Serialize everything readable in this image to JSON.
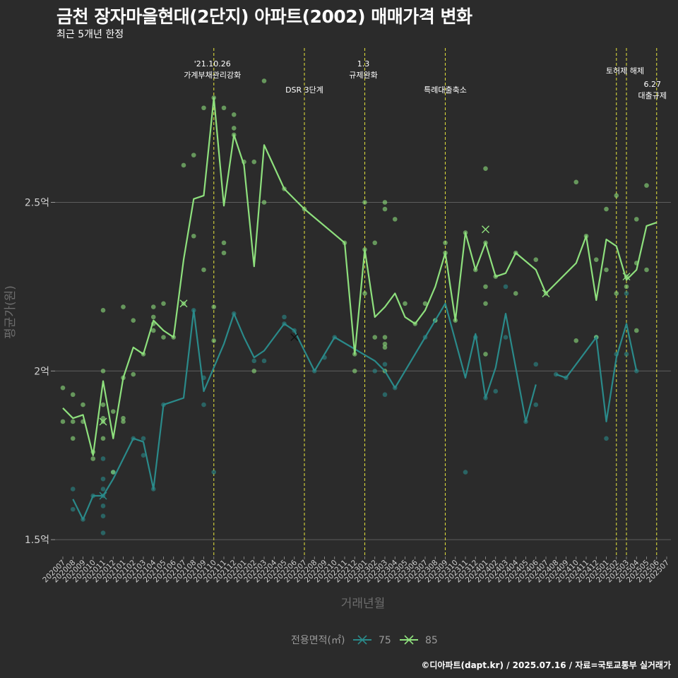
{
  "chart_data": {
    "type": "line",
    "title": "금천 장자마을현대(2단지) 아파트(2002) 매매가격 변화",
    "subtitle": "최근 5개년 한정",
    "xlabel": "거래년월",
    "ylabel": "평균가(원)",
    "caption": "©디아파트(dapt.kr) / 2025.07.16 / 자료=국토교통부 실거래가",
    "legend_title": "전용면적(㎡)",
    "legend_position": "bottom",
    "grid": true,
    "ylim": [
      1.45,
      2.97
    ],
    "yticks": [
      {
        "value": 1.5,
        "label": "1.5억"
      },
      {
        "value": 2.0,
        "label": "2억"
      },
      {
        "value": 2.5,
        "label": "2.5억"
      }
    ],
    "categories": [
      "202007",
      "202008",
      "202009",
      "202010",
      "202011",
      "202012",
      "202101",
      "202102",
      "202103",
      "202104",
      "202105",
      "202106",
      "202107",
      "202108",
      "202109",
      "202110",
      "202111",
      "202112",
      "202201",
      "202202",
      "202203",
      "202204",
      "202205",
      "202206",
      "202207",
      "202208",
      "202209",
      "202210",
      "202211",
      "202212",
      "202301",
      "202302",
      "202303",
      "202304",
      "202305",
      "202306",
      "202307",
      "202308",
      "202309",
      "202310",
      "202311",
      "202312",
      "202401",
      "202402",
      "202403",
      "202404",
      "202405",
      "202406",
      "202407",
      "202408",
      "202409",
      "202410",
      "202411",
      "202412",
      "202501",
      "202502",
      "202503",
      "202504",
      "202505",
      "202506",
      "202507"
    ],
    "series": [
      {
        "name": "75",
        "color": "#2a8a8a",
        "line": [
          [
            1,
            1.62
          ],
          [
            2,
            1.56
          ],
          [
            3,
            1.63
          ],
          [
            4,
            1.63
          ],
          [
            5,
            1.68
          ],
          [
            7,
            1.8
          ],
          [
            8,
            1.79
          ],
          [
            9,
            1.65
          ],
          [
            10,
            1.9
          ],
          [
            12,
            1.92
          ],
          [
            13,
            2.18
          ],
          [
            14,
            1.94
          ],
          [
            16,
            2.08
          ],
          [
            17,
            2.17
          ],
          [
            18,
            2.1
          ],
          [
            19,
            2.04
          ],
          [
            20,
            2.06
          ],
          [
            22,
            2.14
          ],
          [
            23,
            2.12
          ],
          [
            25,
            2.0
          ],
          [
            27,
            2.1
          ],
          [
            31,
            2.03
          ],
          [
            32,
            2.0
          ],
          [
            33,
            1.95
          ],
          [
            36,
            2.1
          ],
          [
            38,
            2.2
          ],
          [
            40,
            1.98
          ],
          [
            41,
            2.11
          ],
          [
            42,
            1.92
          ],
          [
            43,
            2.01
          ],
          [
            44,
            2.17
          ],
          [
            46,
            1.85
          ],
          [
            47,
            1.96
          ],
          [
            null,
            null
          ],
          [
            49,
            1.99
          ],
          [
            50,
            1.98
          ],
          [
            53,
            2.1
          ],
          [
            54,
            1.85
          ],
          [
            55,
            2.04
          ],
          [
            56,
            2.14
          ],
          [
            57,
            2.0
          ]
        ],
        "points": [
          [
            1,
            1.59
          ],
          [
            1,
            1.65
          ],
          [
            2,
            1.56
          ],
          [
            3,
            1.63
          ],
          [
            4,
            1.68
          ],
          [
            4,
            1.65
          ],
          [
            4,
            1.57
          ],
          [
            4,
            1.52
          ],
          [
            4,
            1.63
          ],
          [
            4,
            1.6
          ],
          [
            4,
            1.74
          ],
          [
            5,
            1.7
          ],
          [
            7,
            1.8
          ],
          [
            8,
            1.75
          ],
          [
            8,
            1.8
          ],
          [
            9,
            1.65
          ],
          [
            10,
            1.9
          ],
          [
            13,
            2.18
          ],
          [
            14,
            1.9
          ],
          [
            14,
            1.98
          ],
          [
            15,
            1.7
          ],
          [
            17,
            2.17
          ],
          [
            19,
            2.03
          ],
          [
            20,
            2.03
          ],
          [
            22,
            2.16
          ],
          [
            22,
            2.14
          ],
          [
            23,
            2.12
          ],
          [
            25,
            2.0
          ],
          [
            26,
            2.04
          ],
          [
            27,
            2.1
          ],
          [
            31,
            2.0
          ],
          [
            32,
            1.93
          ],
          [
            32,
            2.02
          ],
          [
            33,
            1.95
          ],
          [
            36,
            2.1
          ],
          [
            37,
            2.15
          ],
          [
            40,
            1.7
          ],
          [
            41,
            2.1
          ],
          [
            42,
            1.92
          ],
          [
            43,
            1.94
          ],
          [
            44,
            2.25
          ],
          [
            44,
            2.1
          ],
          [
            46,
            1.85
          ],
          [
            47,
            1.9
          ],
          [
            47,
            2.02
          ],
          [
            49,
            1.99
          ],
          [
            50,
            1.98
          ],
          [
            53,
            2.1
          ],
          [
            54,
            1.8
          ],
          [
            55,
            2.05
          ],
          [
            56,
            2.23
          ],
          [
            56,
            2.05
          ],
          [
            57,
            2.0
          ]
        ],
        "crosses": [
          [
            4,
            1.63
          ],
          [
            23,
            2.1
          ]
        ]
      },
      {
        "name": "85",
        "color": "#8ee07d",
        "line": [
          [
            0,
            1.89
          ],
          [
            1,
            1.86
          ],
          [
            2,
            1.87
          ],
          [
            3,
            1.75
          ],
          [
            4,
            1.97
          ],
          [
            5,
            1.8
          ],
          [
            6,
            1.98
          ],
          [
            7,
            2.07
          ],
          [
            8,
            2.05
          ],
          [
            9,
            2.15
          ],
          [
            10,
            2.12
          ],
          [
            11,
            2.1
          ],
          [
            12,
            2.33
          ],
          [
            13,
            2.51
          ],
          [
            14,
            2.52
          ],
          [
            15,
            2.81
          ],
          [
            16,
            2.49
          ],
          [
            17,
            2.7
          ],
          [
            18,
            2.61
          ],
          [
            19,
            2.31
          ],
          [
            20,
            2.67
          ],
          [
            22,
            2.54
          ],
          [
            24,
            2.48
          ],
          [
            28,
            2.38
          ],
          [
            29,
            2.05
          ],
          [
            30,
            2.36
          ],
          [
            31,
            2.16
          ],
          [
            32,
            2.19
          ],
          [
            33,
            2.23
          ],
          [
            34,
            2.16
          ],
          [
            35,
            2.14
          ],
          [
            36,
            2.18
          ],
          [
            37,
            2.25
          ],
          [
            38,
            2.35
          ],
          [
            39,
            2.15
          ],
          [
            40,
            2.41
          ],
          [
            41,
            2.3
          ],
          [
            42,
            2.38
          ],
          [
            43,
            2.28
          ],
          [
            44,
            2.29
          ],
          [
            45,
            2.35
          ],
          [
            47,
            2.3
          ],
          [
            48,
            2.23
          ],
          [
            51,
            2.32
          ],
          [
            52,
            2.4
          ],
          [
            53,
            2.21
          ],
          [
            54,
            2.39
          ],
          [
            55,
            2.37
          ],
          [
            56,
            2.27
          ],
          [
            57,
            2.3
          ],
          [
            58,
            2.43
          ],
          [
            59,
            2.44
          ]
        ],
        "points": [
          [
            0,
            1.95
          ],
          [
            0,
            1.85
          ],
          [
            1,
            1.93
          ],
          [
            1,
            1.85
          ],
          [
            1,
            1.8
          ],
          [
            2,
            1.9
          ],
          [
            2,
            1.85
          ],
          [
            3,
            1.76
          ],
          [
            3,
            1.74
          ],
          [
            4,
            2.18
          ],
          [
            4,
            2.0
          ],
          [
            4,
            1.9
          ],
          [
            4,
            1.85
          ],
          [
            4,
            1.8
          ],
          [
            4,
            1.86
          ],
          [
            5,
            1.88
          ],
          [
            5,
            1.7
          ],
          [
            6,
            1.86
          ],
          [
            6,
            2.19
          ],
          [
            6,
            1.85
          ],
          [
            6,
            1.98
          ],
          [
            7,
            2.15
          ],
          [
            7,
            1.99
          ],
          [
            8,
            2.05
          ],
          [
            9,
            2.19
          ],
          [
            9,
            2.16
          ],
          [
            9,
            2.12
          ],
          [
            9,
            2.14
          ],
          [
            10,
            2.2
          ],
          [
            10,
            2.1
          ],
          [
            11,
            2.1
          ],
          [
            12,
            2.61
          ],
          [
            12,
            2.2
          ],
          [
            13,
            2.64
          ],
          [
            13,
            2.4
          ],
          [
            14,
            2.78
          ],
          [
            14,
            2.3
          ],
          [
            15,
            2.81
          ],
          [
            15,
            2.19
          ],
          [
            15,
            2.09
          ],
          [
            16,
            2.78
          ],
          [
            16,
            2.38
          ],
          [
            16,
            2.35
          ],
          [
            17,
            2.72
          ],
          [
            17,
            2.7
          ],
          [
            17,
            2.76
          ],
          [
            18,
            2.62
          ],
          [
            19,
            2.62
          ],
          [
            19,
            2.0
          ],
          [
            20,
            2.86
          ],
          [
            20,
            2.5
          ],
          [
            22,
            2.54
          ],
          [
            24,
            2.48
          ],
          [
            28,
            2.38
          ],
          [
            29,
            2.05
          ],
          [
            29,
            2.0
          ],
          [
            30,
            2.5
          ],
          [
            30,
            2.23
          ],
          [
            30,
            2.36
          ],
          [
            31,
            2.38
          ],
          [
            31,
            2.1
          ],
          [
            32,
            2.5
          ],
          [
            32,
            2.48
          ],
          [
            32,
            2.1
          ],
          [
            32,
            2.08
          ],
          [
            32,
            2.07
          ],
          [
            32,
            2.0
          ],
          [
            33,
            2.45
          ],
          [
            34,
            2.2
          ],
          [
            35,
            2.14
          ],
          [
            36,
            2.2
          ],
          [
            37,
            2.15
          ],
          [
            38,
            2.38
          ],
          [
            38,
            2.35
          ],
          [
            39,
            2.15
          ],
          [
            40,
            2.41
          ],
          [
            41,
            2.3
          ],
          [
            42,
            2.6
          ],
          [
            42,
            2.38
          ],
          [
            42,
            2.25
          ],
          [
            42,
            2.2
          ],
          [
            42,
            2.05
          ],
          [
            43,
            2.28
          ],
          [
            45,
            2.35
          ],
          [
            45,
            2.23
          ],
          [
            47,
            2.33
          ],
          [
            48,
            2.23
          ],
          [
            51,
            2.56
          ],
          [
            51,
            2.09
          ],
          [
            52,
            2.4
          ],
          [
            53,
            2.33
          ],
          [
            53,
            2.1
          ],
          [
            54,
            2.48
          ],
          [
            54,
            2.3
          ],
          [
            55,
            2.52
          ],
          [
            55,
            2.23
          ],
          [
            56,
            2.25
          ],
          [
            56,
            2.28
          ],
          [
            57,
            2.45
          ],
          [
            57,
            2.32
          ],
          [
            57,
            2.12
          ],
          [
            58,
            2.55
          ],
          [
            58,
            2.3
          ]
        ],
        "crosses": [
          [
            4,
            1.85
          ],
          [
            12,
            2.2
          ],
          [
            42,
            2.42
          ],
          [
            48,
            2.23
          ],
          [
            56,
            2.28
          ]
        ]
      }
    ],
    "events": [
      {
        "x": 15.0,
        "labels": [
          "'21.10.26",
          "가계부채관리강화"
        ],
        "level": 0
      },
      {
        "x": 24.0,
        "labels": [
          "DSR 3단계"
        ],
        "level": 2
      },
      {
        "x": 30.0,
        "labels": [
          "1.3",
          "규제완화"
        ],
        "level": 0
      },
      {
        "x": 38.0,
        "labels": [
          "특례대출축소"
        ],
        "level": 2
      },
      {
        "x": 55.0,
        "labels": [],
        "level": 0
      },
      {
        "x": 56.0,
        "labels": [
          "토허제 해제"
        ],
        "level": 1
      },
      {
        "x": 59.0,
        "labels": [
          "6.27",
          "대출규제"
        ],
        "level": 3
      }
    ]
  }
}
